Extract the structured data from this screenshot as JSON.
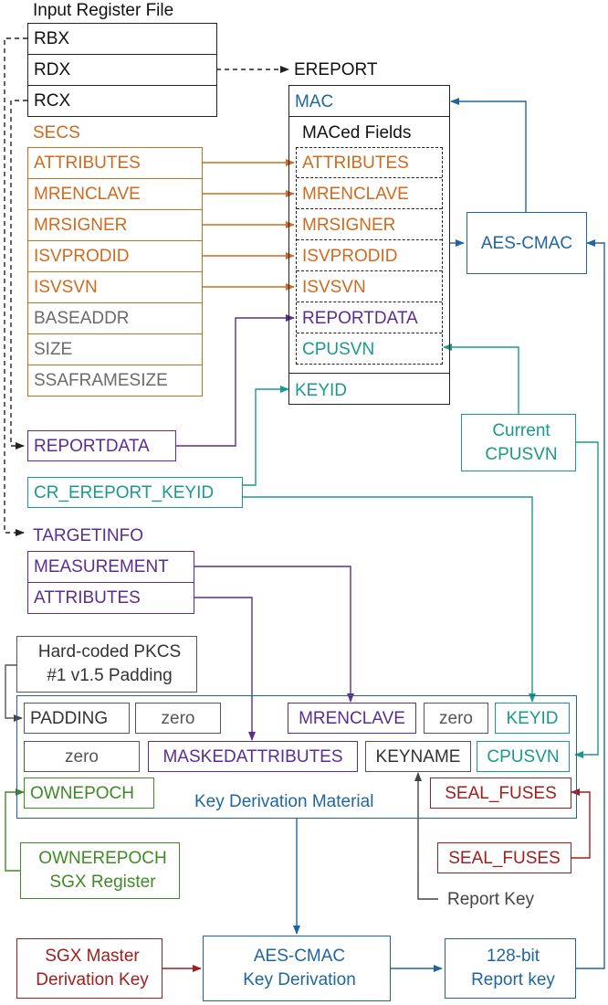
{
  "input_register_file": {
    "title": "Input Register File",
    "registers": [
      "RBX",
      "RDX",
      "RCX"
    ]
  },
  "secs": {
    "title": "SECS",
    "fields": [
      "ATTRIBUTES",
      "MRENCLAVE",
      "MRSIGNER",
      "ISVPRODID",
      "ISVSVN",
      "BASEADDR",
      "SIZE",
      "SSAFRAMESIZE"
    ]
  },
  "ereport": {
    "title": "EREPORT",
    "mac": "MAC",
    "maced_title": "MACed Fields",
    "maced_fields": [
      "ATTRIBUTES",
      "MRENCLAVE",
      "MRSIGNER",
      "ISVPRODID",
      "ISVSVN",
      "REPORTDATA",
      "CPUSVN"
    ],
    "keyid": "KEYID"
  },
  "aes_cmac": "AES-CMAC",
  "current_cpusvn": [
    "Current",
    "CPUSVN"
  ],
  "reportdata": "REPORTDATA",
  "cr_ereport_keyid": "CR_EREPORT_KEYID",
  "targetinfo": {
    "title": "TARGETINFO",
    "fields": [
      "MEASUREMENT",
      "ATTRIBUTES"
    ]
  },
  "pkcs_padding": [
    "Hard-coded PKCS",
    "#1 v1.5 Padding"
  ],
  "key_derivation_material": {
    "title": "Key Derivation Material",
    "row1": [
      "PADDING",
      "zero",
      "MRENCLAVE",
      "zero",
      "KEYID"
    ],
    "row2": [
      "zero",
      "MASKEDATTRIBUTES",
      "KEYNAME",
      "CPUSVN"
    ],
    "row3": [
      "OWNEPOCH",
      "SEAL_FUSES"
    ]
  },
  "ownerepoch_register": [
    "OWNEREPOCH",
    "SGX Register"
  ],
  "seal_fuses": "SEAL_FUSES",
  "report_key_label": "Report Key",
  "sgx_master": [
    "SGX Master",
    "Derivation Key"
  ],
  "aes_cmac_kd": [
    "AES-CMAC",
    "Key Derivation"
  ],
  "report_key_128": [
    "128-bit",
    "Report key"
  ],
  "colors": {
    "secs": "#d06a1e",
    "reportdata": "#5b2d91",
    "keyid": "#1a9a8c",
    "mac": "#1f66a0",
    "ownepoch": "#3f8a24",
    "fuses": "#a01e1e",
    "neutral": "#222222"
  }
}
